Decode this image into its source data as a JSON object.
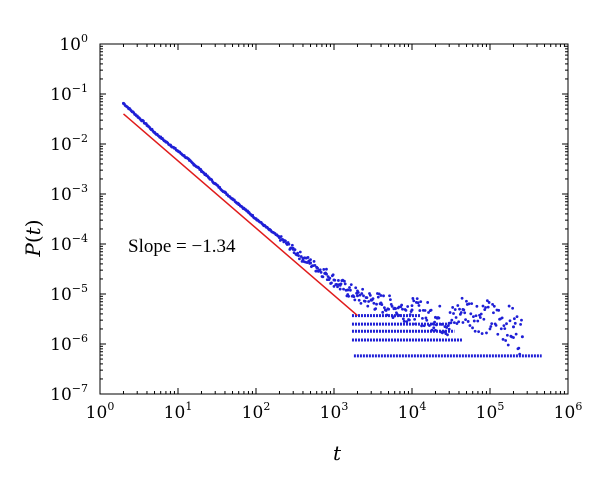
{
  "chart_data": {
    "type": "scatter",
    "title": "",
    "xlabel_base": "t",
    "ylabel_base": "P",
    "ylabel_arg": "t",
    "x_scale": "log",
    "y_scale": "log",
    "xlim": [
      1,
      1000000
    ],
    "ylim": [
      1e-07,
      1
    ],
    "grid": false,
    "legend": "none",
    "x_tick_values": [
      1,
      10,
      100,
      1000,
      10000,
      100000,
      1000000
    ],
    "x_tick_labels": [
      {
        "base": "10",
        "exp": "0"
      },
      {
        "base": "10",
        "exp": "1"
      },
      {
        "base": "10",
        "exp": "2"
      },
      {
        "base": "10",
        "exp": "3"
      },
      {
        "base": "10",
        "exp": "4"
      },
      {
        "base": "10",
        "exp": "5"
      },
      {
        "base": "10",
        "exp": "6"
      }
    ],
    "y_tick_values": [
      1e-07,
      1e-06,
      1e-05,
      0.0001,
      0.001,
      0.01,
      0.1,
      1
    ],
    "y_tick_labels": [
      {
        "base": "10",
        "exp": "−7"
      },
      {
        "base": "10",
        "exp": "−6"
      },
      {
        "base": "10",
        "exp": "−5"
      },
      {
        "base": "10",
        "exp": "−4"
      },
      {
        "base": "10",
        "exp": "−3"
      },
      {
        "base": "10",
        "exp": "−2"
      },
      {
        "base": "10",
        "exp": "−1"
      },
      {
        "base": "10",
        "exp": "0"
      }
    ],
    "annotation": "Slope = −1.34",
    "series": [
      {
        "kind": "scatter",
        "color": "#1f1fd6",
        "slope": -1.34,
        "points": [
          [
            2,
            0.065
          ],
          [
            3,
            0.036
          ],
          [
            4,
            0.024
          ],
          [
            5,
            0.017
          ],
          [
            6,
            0.0135
          ],
          [
            7,
            0.011
          ],
          [
            8,
            0.0095
          ],
          [
            9,
            0.0082
          ],
          [
            10,
            0.0072
          ],
          [
            12,
            0.0058
          ],
          [
            14,
            0.0047
          ],
          [
            16,
            0.0039
          ],
          [
            18,
            0.0034
          ],
          [
            20,
            0.0029
          ],
          [
            25,
            0.0021
          ],
          [
            30,
            0.0016
          ],
          [
            40,
            0.00107
          ],
          [
            50,
            0.0008
          ],
          [
            60,
            0.00063
          ],
          [
            80,
            0.00043
          ],
          [
            100,
            0.00032
          ],
          [
            150,
            0.00019
          ],
          [
            200,
            0.000135
          ],
          [
            300,
            7.8e-05
          ],
          [
            400,
            5.2e-05
          ],
          [
            500,
            4.2e-05
          ],
          [
            600,
            3.4e-05
          ],
          [
            800,
            2.5e-05
          ],
          [
            1000,
            1.9e-05
          ],
          [
            1200,
            1.5e-05
          ],
          [
            1500,
            1.2e-05
          ],
          [
            2000,
            9.2e-06
          ],
          [
            3000,
            7.5e-06
          ],
          [
            4000,
            6.6e-06
          ],
          [
            6000,
            5.2e-06
          ],
          [
            10000,
            4.8e-06
          ],
          [
            20000,
            3.4e-06
          ],
          [
            30000,
            2.6e-06
          ],
          [
            45000,
            4.9e-06
          ],
          [
            200000,
            2.2e-06
          ],
          [
            260000,
            1.4e-06
          ]
        ],
        "bands": [
          {
            "y": 3.7e-06,
            "x_from": 1700,
            "x_to": 13000
          },
          {
            "y": 2.5e-06,
            "x_from": 1700,
            "x_to": 30000
          },
          {
            "y": 1.8e-06,
            "x_from": 1700,
            "x_to": 35000
          },
          {
            "y": 1.2e-06,
            "x_from": 1700,
            "x_to": 45000
          },
          {
            "y": 5.8e-07,
            "x_from": 1800,
            "x_to": 460000
          }
        ]
      },
      {
        "kind": "fit-line",
        "color": "#e01b1b",
        "from": [
          2,
          0.04
        ],
        "to": [
          2000,
          3.7e-06
        ]
      }
    ]
  }
}
